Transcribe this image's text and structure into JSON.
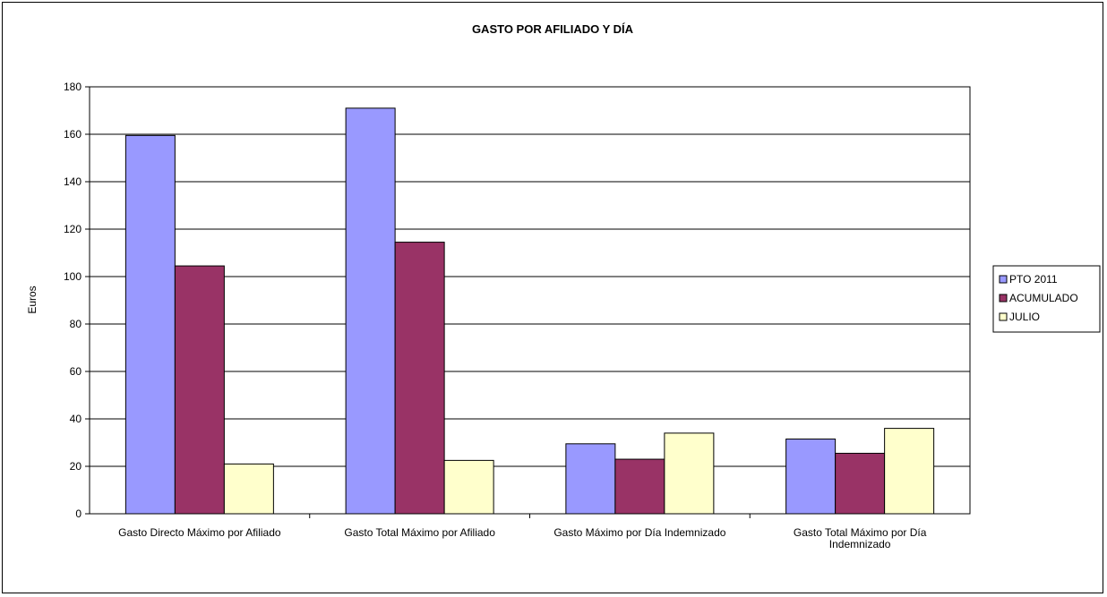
{
  "chart_data": {
    "type": "bar",
    "title": "GASTO POR AFILIADO Y DÍA",
    "ylabel": "Euros",
    "xlabel": "",
    "ylim": [
      0,
      180
    ],
    "yticks": [
      0,
      20,
      40,
      60,
      80,
      100,
      120,
      140,
      160,
      180
    ],
    "grid": true,
    "legend_position": "right",
    "categories": [
      [
        "Gasto Directo Máximo  por Afiliado"
      ],
      [
        "Gasto Total Máximo  por Afiliado"
      ],
      [
        "Gasto Máximo por Día  Indemnizado"
      ],
      [
        "Gasto Total Máximo  por Día",
        "Indemnizado"
      ]
    ],
    "series": [
      {
        "name": "PTO 2011",
        "color": "#9999ff",
        "values": [
          159.5,
          171,
          29.5,
          31.5
        ]
      },
      {
        "name": "ACUMULADO",
        "color": "#993366",
        "values": [
          104.5,
          114.5,
          23,
          25.5
        ]
      },
      {
        "name": "JULIO",
        "color": "#ffffcc",
        "values": [
          21,
          22.5,
          34,
          36
        ]
      }
    ]
  }
}
